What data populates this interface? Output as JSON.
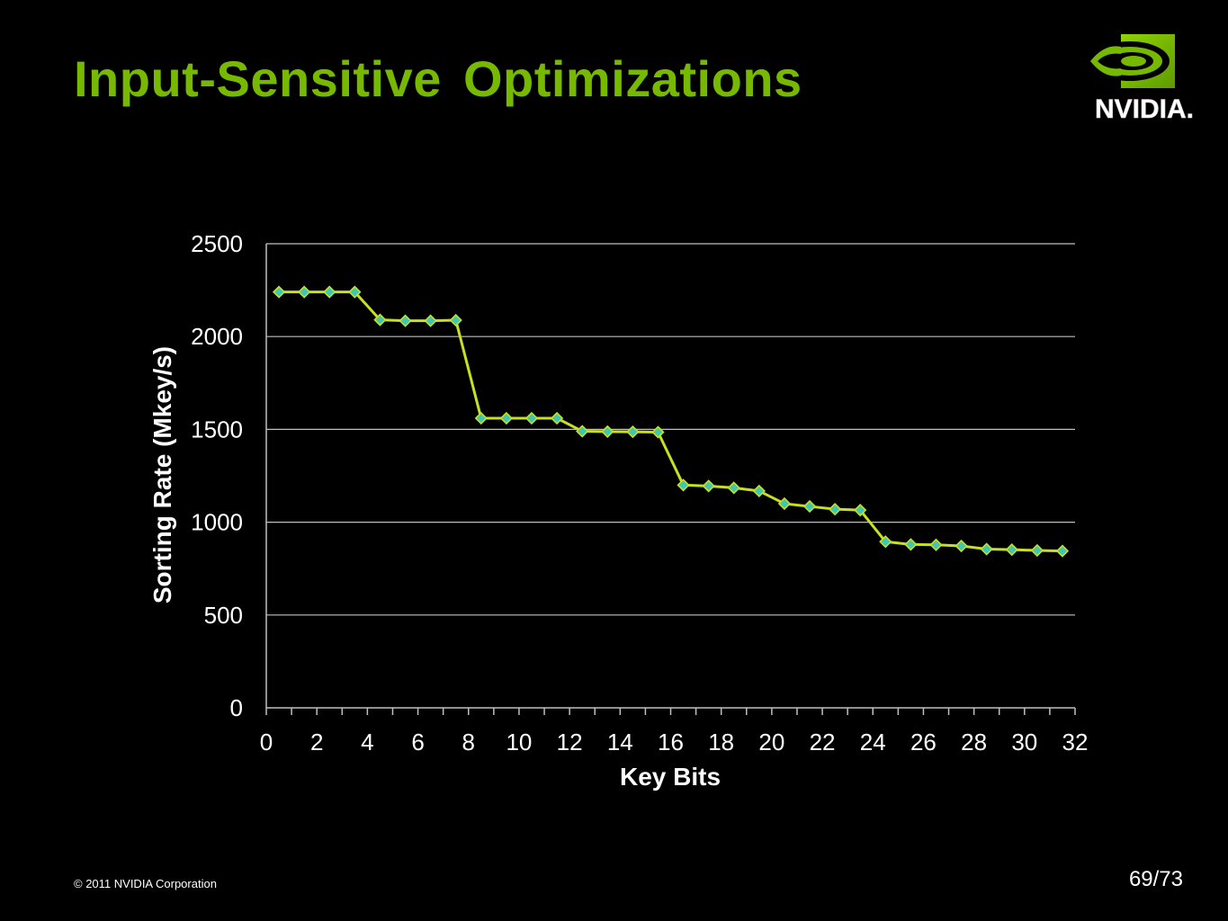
{
  "slide": {
    "title": "Input-Sensitive Optimizations",
    "logo_text": "NVIDIA.",
    "copyright": "© 2011 NVIDIA Corporation",
    "page_number": "69/73",
    "title_color": "#76B900",
    "background_color": "#000000"
  },
  "chart_data": {
    "type": "line",
    "title": "",
    "xlabel": "Key Bits",
    "ylabel": "Sorting Rate (Mkey/s)",
    "xlim": [
      0,
      32
    ],
    "ylim": [
      0,
      2500
    ],
    "x_ticks": [
      0,
      2,
      4,
      6,
      8,
      10,
      12,
      14,
      16,
      18,
      20,
      22,
      24,
      26,
      28,
      30,
      32
    ],
    "y_ticks": [
      0,
      500,
      1000,
      1500,
      2000,
      2500
    ],
    "grid": "horizontal",
    "legend": "none",
    "series": [
      {
        "line_color": "#C8E020",
        "marker": "diamond",
        "marker_color": "#3FC7B2",
        "x": [
          1,
          2,
          3,
          4,
          5,
          6,
          7,
          8,
          9,
          10,
          11,
          12,
          13,
          14,
          15,
          16,
          17,
          18,
          19,
          20,
          21,
          22,
          23,
          24,
          25,
          26,
          27,
          28,
          29,
          30,
          31,
          32
        ],
        "values": [
          2240,
          2240,
          2240,
          2240,
          2090,
          2085,
          2085,
          2088,
          1560,
          1560,
          1560,
          1560,
          1490,
          1488,
          1487,
          1485,
          1200,
          1195,
          1185,
          1168,
          1100,
          1085,
          1070,
          1065,
          895,
          880,
          878,
          872,
          855,
          852,
          848,
          845
        ]
      }
    ]
  }
}
